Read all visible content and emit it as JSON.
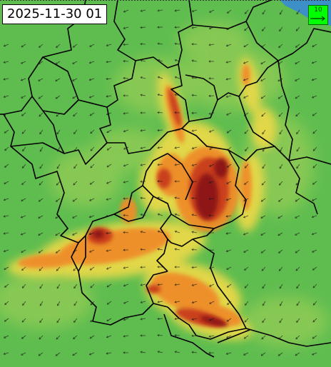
{
  "map": {
    "timestamp": "2025-11-30 01",
    "legend": {
      "reference_value": "10",
      "box_color": "#00ff00",
      "icon": "reference-arrow-icon"
    },
    "colors": {
      "sea": "#3d8fc7",
      "low": "#5fbd4f",
      "mid_low": "#8fcb55",
      "mid": "#e8d84a",
      "high": "#ee8d2c",
      "very_high": "#c9401c",
      "extreme": "#8e1418",
      "borders": "#000000",
      "wind_arrows": "#1a1a1a"
    }
  }
}
